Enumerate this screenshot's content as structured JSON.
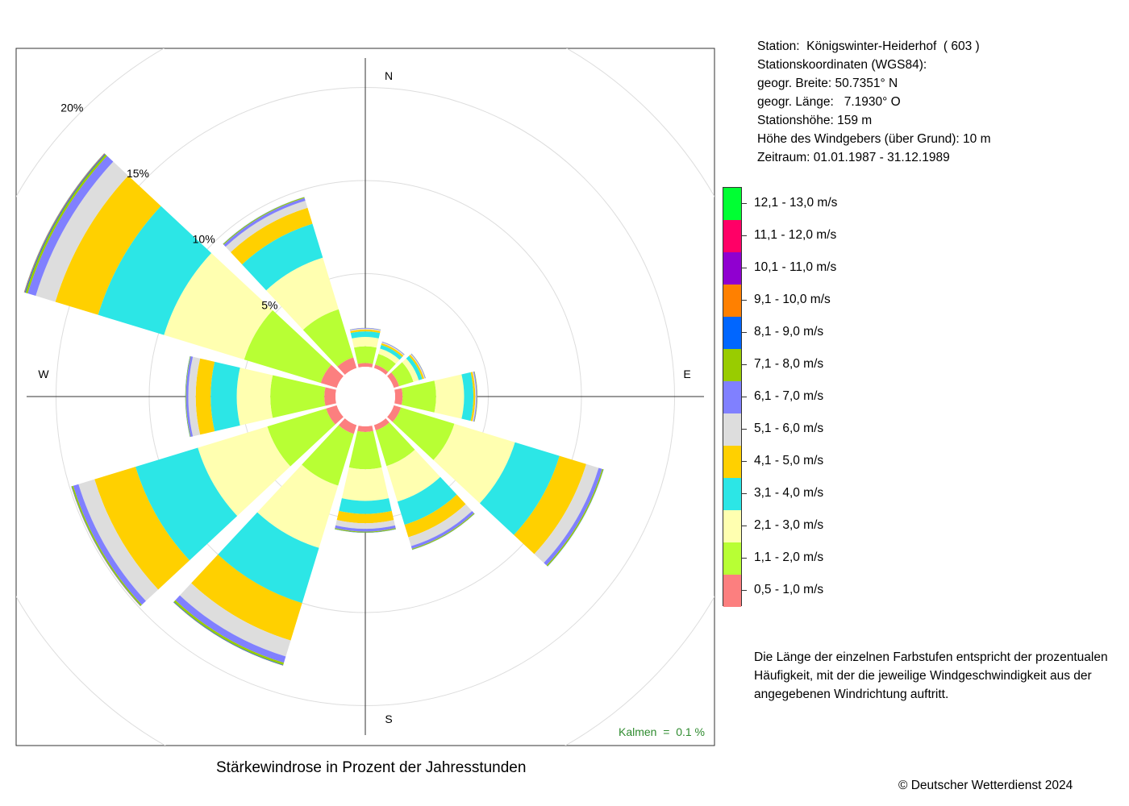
{
  "chart_data": {
    "type": "wind-rose",
    "title": "Stärkewindrose in Prozent der Jahresstunden",
    "directions": [
      "N",
      "NNO",
      "ONO",
      "O",
      "OSO",
      "SSO",
      "S",
      "SSW",
      "WSW",
      "W",
      "WNW",
      "NNW"
    ],
    "compass_labels": [
      "N",
      "E",
      "S",
      "W"
    ],
    "rings": [
      5,
      10,
      15,
      20
    ],
    "ring_labels": [
      "5%",
      "10%",
      "15%",
      "20%"
    ],
    "calm": "Kalmen  =  0.1 %",
    "colors": [
      "#fc7f7f",
      "#b8ff34",
      "#ffffb0",
      "#2ce6e6",
      "#ffd000",
      "#dddddd",
      "#8080ff",
      "#99cc00",
      "#0066ff",
      "#ff8000",
      "#9000d0",
      "#ff0066",
      "#00ff33"
    ],
    "series": [
      {
        "name": "0,5 - 1,0 m/s",
        "values": [
          0.2,
          0.2,
          0.3,
          0.4,
          0.4,
          0.3,
          0.3,
          0.5,
          0.6,
          0.6,
          0.9,
          0.6
        ]
      },
      {
        "name": "1,1 - 2,0 m/s",
        "values": [
          0.9,
          0.6,
          0.8,
          1.8,
          3.0,
          2.0,
          2.0,
          2.9,
          3.3,
          2.9,
          4.3,
          2.7
        ]
      },
      {
        "name": "2,1 - 3,0 m/s",
        "values": [
          0.5,
          0.3,
          0.3,
          1.5,
          3.4,
          2.0,
          1.7,
          3.5,
          3.9,
          1.8,
          4.5,
          2.9
        ]
      },
      {
        "name": "3,1 - 4,0 m/s",
        "values": [
          0.3,
          0.2,
          0.2,
          0.5,
          2.5,
          1.3,
          0.7,
          3.1,
          3.5,
          1.4,
          3.7,
          1.9
        ]
      },
      {
        "name": "4,1 - 5,0 m/s",
        "values": [
          0.1,
          0.1,
          0.1,
          0.1,
          1.5,
          0.7,
          0.5,
          2.1,
          2.3,
          0.8,
          2.4,
          0.9
        ]
      },
      {
        "name": "5,1 - 6,0 m/s",
        "values": [
          0.05,
          0.05,
          0.05,
          0.05,
          0.7,
          0.5,
          0.3,
          0.9,
          0.9,
          0.4,
          1.1,
          0.4
        ]
      },
      {
        "name": "6,1 - 7,0 m/s",
        "values": [
          0.03,
          0.03,
          0.03,
          0.05,
          0.2,
          0.15,
          0.15,
          0.35,
          0.3,
          0.12,
          0.45,
          0.15
        ]
      },
      {
        "name": "7,1 - 8,0 m/s",
        "values": [
          0.01,
          0.01,
          0.01,
          0.02,
          0.07,
          0.05,
          0.05,
          0.12,
          0.08,
          0.03,
          0.12,
          0.05
        ]
      },
      {
        "name": "8,1 - 9,0 m/s",
        "values": [
          0,
          0,
          0,
          0,
          0.01,
          0.01,
          0.01,
          0.03,
          0.02,
          0.01,
          0.04,
          0.01
        ]
      },
      {
        "name": "9,1 - 10,0 m/s",
        "values": [
          0,
          0,
          0,
          0,
          0,
          0,
          0,
          0.01,
          0.01,
          0,
          0.02,
          0
        ]
      },
      {
        "name": "10,1 - 11,0 m/s",
        "values": [
          0,
          0,
          0,
          0,
          0,
          0,
          0,
          0,
          0,
          0,
          0.01,
          0
        ]
      },
      {
        "name": "11,1 - 12,0 m/s",
        "values": [
          0,
          0,
          0,
          0,
          0,
          0,
          0,
          0,
          0,
          0,
          0.01,
          0
        ]
      },
      {
        "name": "12,1 - 13,0 m/s",
        "values": [
          0,
          0,
          0,
          0,
          0,
          0,
          0,
          0,
          0,
          0,
          0.01,
          0
        ]
      }
    ]
  },
  "station": {
    "line1": "Station:  Königswinter-Heiderhof  ( 603 )",
    "line2": "Stationskoordinaten (WGS84):",
    "line3": "geogr. Breite: 50.7351° N",
    "line4": "geogr. Länge:   7.1930° O",
    "line5": "Stationshöhe: 159 m",
    "line6": "Höhe des Windgebers (über Grund): 10 m",
    "line7": "Zeitraum: 01.01.1987 - 31.12.1989"
  },
  "legend_order_top_to_bottom": [
    "12,1 - 13,0 m/s",
    "11,1 - 12,0 m/s",
    "10,1 - 11,0 m/s",
    "9,1 - 10,0 m/s",
    "8,1 - 9,0 m/s",
    "7,1 - 8,0 m/s",
    "6,1 - 7,0 m/s",
    "5,1 - 6,0 m/s",
    "4,1 - 5,0 m/s",
    "3,1 - 4,0 m/s",
    "2,1 - 3,0 m/s",
    "1,1 - 2,0 m/s",
    "0,5 - 1,0 m/s"
  ],
  "legend_colors_top_to_bottom": [
    "#00ff33",
    "#ff0066",
    "#9000d0",
    "#ff8000",
    "#0066ff",
    "#99cc00",
    "#8080ff",
    "#dddddd",
    "#ffd000",
    "#2ce6e6",
    "#ffffb0",
    "#b8ff34",
    "#fc7f7f"
  ],
  "note": "Die Länge der einzelnen Farbstufen entspricht der prozentualen Häufigkeit, mit der die jeweilige Windgeschwindigkeit aus der angegebenen Windrichtung auftritt.",
  "caption": "Stärkewindrose in Prozent der Jahresstunden",
  "copyright": "© Deutscher Wetterdienst  2024"
}
